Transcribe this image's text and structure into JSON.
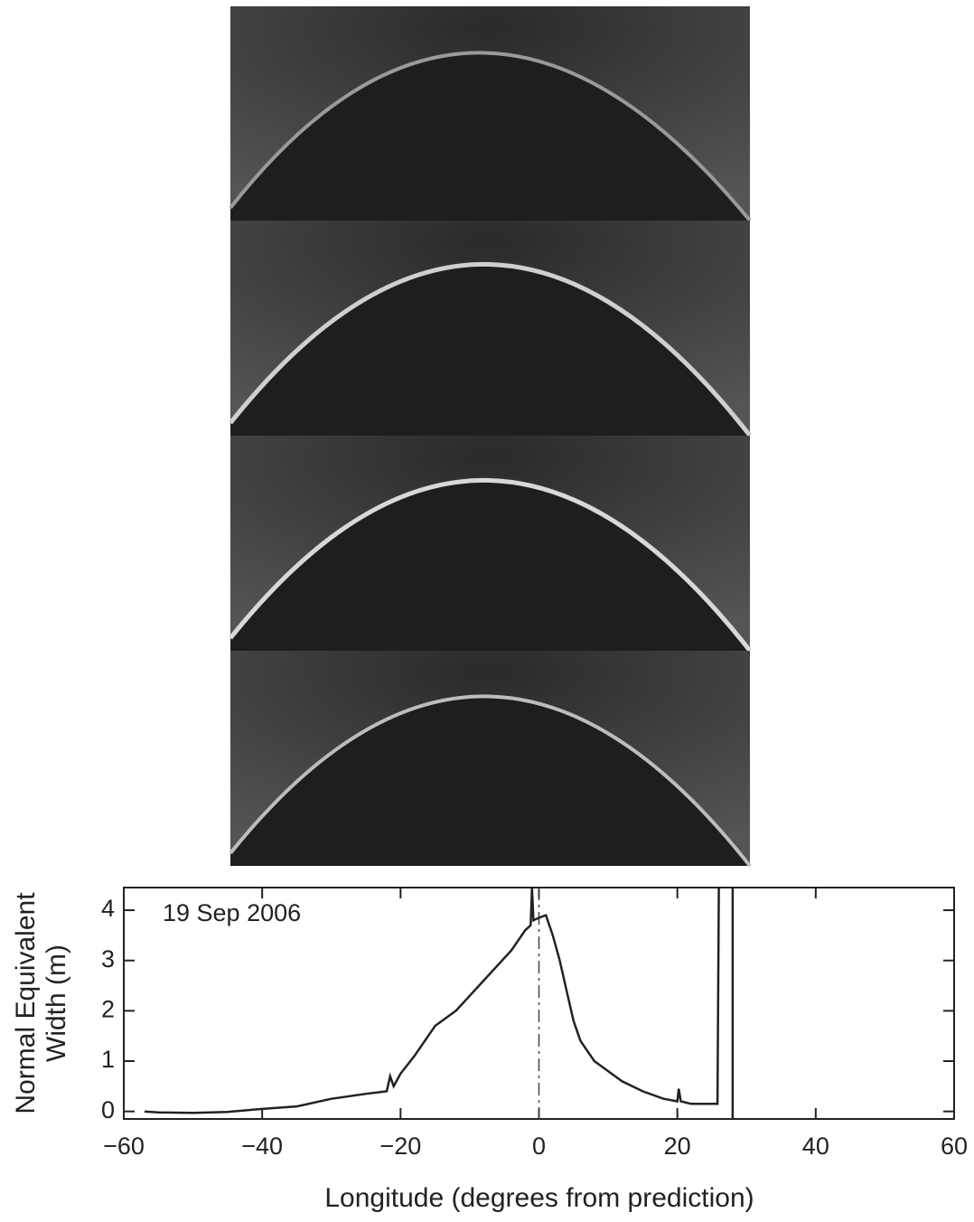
{
  "chart_data": {
    "type": "line",
    "annotation": "19 Sep 2006",
    "x_label": "Longitude (degrees from prediction)",
    "y_label": [
      "Normal Equivalent",
      "Width (m)"
    ],
    "xlim": [
      -60,
      60
    ],
    "ylim": [
      -0.15,
      4.45
    ],
    "xticks": [
      {
        "value": -60,
        "label": "−60"
      },
      {
        "value": -40,
        "label": "−40"
      },
      {
        "value": -20,
        "label": "−20"
      },
      0,
      20,
      40,
      60
    ],
    "yticks": [
      0,
      1,
      2,
      3,
      4
    ],
    "reference_x": 0,
    "series": [
      {
        "color": "#222222",
        "x": [
          -57,
          -55,
          -50,
          -45,
          -40,
          -35,
          -30,
          -25,
          -22,
          -21.5,
          -21,
          -20,
          -18,
          -15,
          -12,
          -10,
          -8,
          -6,
          -4,
          -2,
          -1.2,
          -1,
          -0.8,
          0,
          1,
          2,
          3,
          4,
          5,
          6,
          8,
          10,
          12,
          15,
          18,
          20,
          20.2,
          20.5,
          22,
          24,
          25.8,
          26,
          null,
          28,
          28
        ],
        "values": [
          0,
          -0.02,
          -0.03,
          -0.01,
          0.05,
          0.1,
          0.25,
          0.35,
          0.4,
          0.7,
          0.5,
          0.75,
          1.1,
          1.7,
          2.0,
          2.3,
          2.6,
          2.9,
          3.2,
          3.6,
          3.7,
          4.45,
          3.8,
          3.85,
          3.9,
          3.5,
          3.0,
          2.4,
          1.8,
          1.4,
          1.0,
          0.8,
          0.6,
          0.4,
          0.25,
          0.2,
          0.45,
          0.2,
          0.15,
          0.15,
          0.15,
          4.45,
          null,
          -0.15,
          4.45
        ]
      }
    ]
  }
}
